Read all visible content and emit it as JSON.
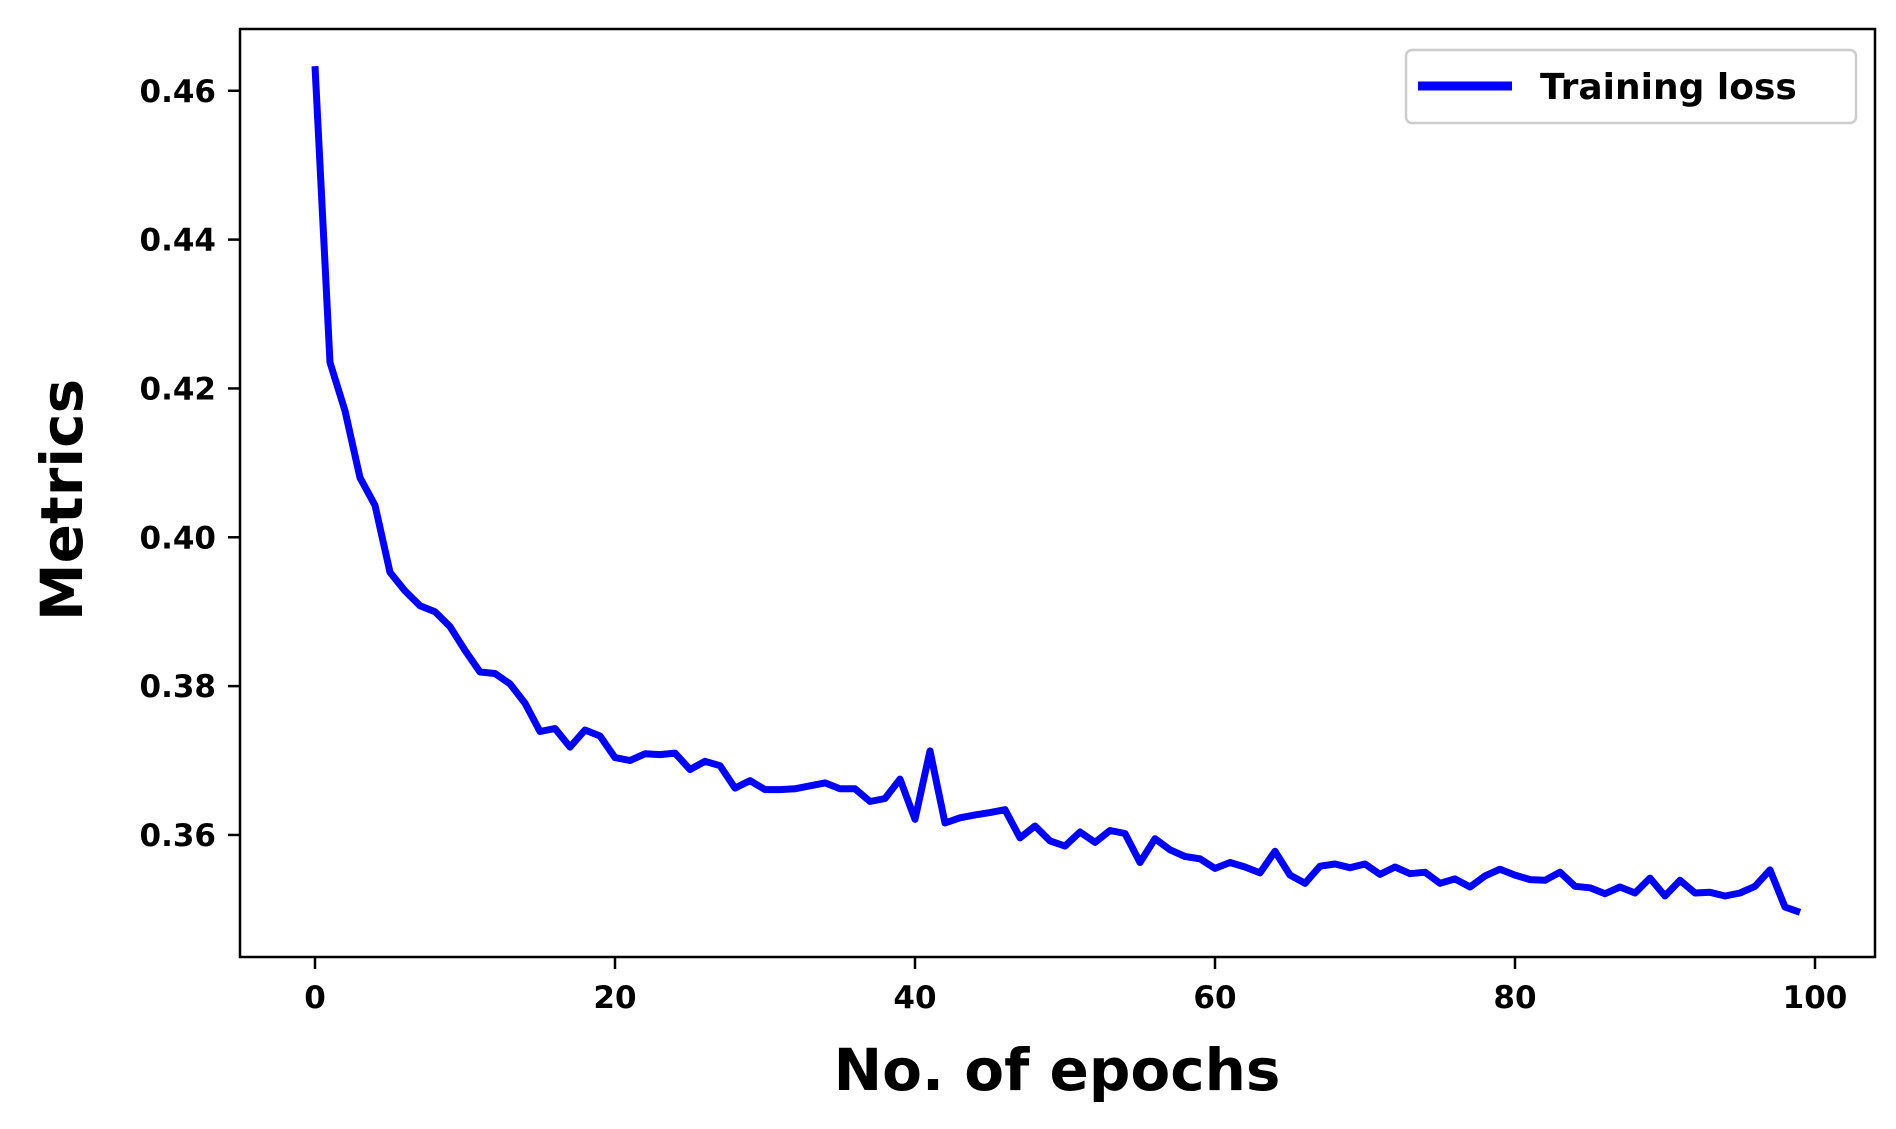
{
  "chart_data": {
    "type": "line",
    "title": "",
    "xlabel": "No. of epochs",
    "ylabel": "Metrics",
    "xlim": [
      -5,
      104
    ],
    "ylim": [
      0.3436,
      0.4683
    ],
    "x_ticks": [
      0,
      20,
      40,
      60,
      80,
      100
    ],
    "x_tick_labels": [
      "0",
      "20",
      "40",
      "60",
      "80",
      "100"
    ],
    "y_ticks": [
      0.36,
      0.38,
      0.4,
      0.42,
      0.44,
      0.46
    ],
    "y_tick_labels": [
      "0.36",
      "0.38",
      "0.40",
      "0.42",
      "0.44",
      "0.46"
    ],
    "grid": false,
    "legend_position": "top-right",
    "series": [
      {
        "name": "Training loss",
        "color": "#0000ff",
        "x": [
          0,
          1,
          2,
          3,
          4,
          5,
          6,
          7,
          8,
          9,
          10,
          11,
          12,
          13,
          14,
          15,
          16,
          17,
          18,
          19,
          20,
          21,
          22,
          23,
          24,
          25,
          26,
          27,
          28,
          29,
          30,
          31,
          32,
          33,
          34,
          35,
          36,
          37,
          38,
          39,
          40,
          41,
          42,
          43,
          44,
          45,
          46,
          47,
          48,
          49,
          50,
          51,
          52,
          53,
          54,
          55,
          56,
          57,
          58,
          59,
          60,
          61,
          62,
          63,
          64,
          65,
          66,
          67,
          68,
          69,
          70,
          71,
          72,
          73,
          74,
          75,
          76,
          77,
          78,
          79,
          80,
          81,
          82,
          83,
          84,
          85,
          86,
          87,
          88,
          89,
          90,
          91,
          92,
          93,
          94,
          95,
          96,
          97,
          98,
          99
        ],
        "values": [
          0.4633,
          0.4235,
          0.417,
          0.408,
          0.4043,
          0.3953,
          0.3928,
          0.3908,
          0.39,
          0.388,
          0.3848,
          0.3819,
          0.3817,
          0.3803,
          0.3777,
          0.3739,
          0.3743,
          0.3718,
          0.3741,
          0.3733,
          0.3704,
          0.37,
          0.3709,
          0.3708,
          0.371,
          0.3688,
          0.3699,
          0.3693,
          0.3663,
          0.3673,
          0.3661,
          0.3661,
          0.3662,
          0.3666,
          0.367,
          0.3662,
          0.3662,
          0.3645,
          0.3649,
          0.3675,
          0.3621,
          0.3713,
          0.3616,
          0.3623,
          0.3627,
          0.363,
          0.3634,
          0.3596,
          0.3612,
          0.3592,
          0.3585,
          0.3604,
          0.359,
          0.3606,
          0.3602,
          0.3563,
          0.3595,
          0.358,
          0.3571,
          0.3568,
          0.3555,
          0.3563,
          0.3557,
          0.3549,
          0.3578,
          0.3546,
          0.3535,
          0.3558,
          0.3561,
          0.3556,
          0.3561,
          0.3547,
          0.3557,
          0.3548,
          0.355,
          0.3535,
          0.3541,
          0.353,
          0.3545,
          0.3554,
          0.3546,
          0.354,
          0.3539,
          0.355,
          0.3531,
          0.3529,
          0.3521,
          0.353,
          0.3522,
          0.3542,
          0.3518,
          0.3539,
          0.3522,
          0.3523,
          0.3518,
          0.3522,
          0.3531,
          0.3553,
          0.3503,
          0.3496
        ]
      }
    ]
  }
}
